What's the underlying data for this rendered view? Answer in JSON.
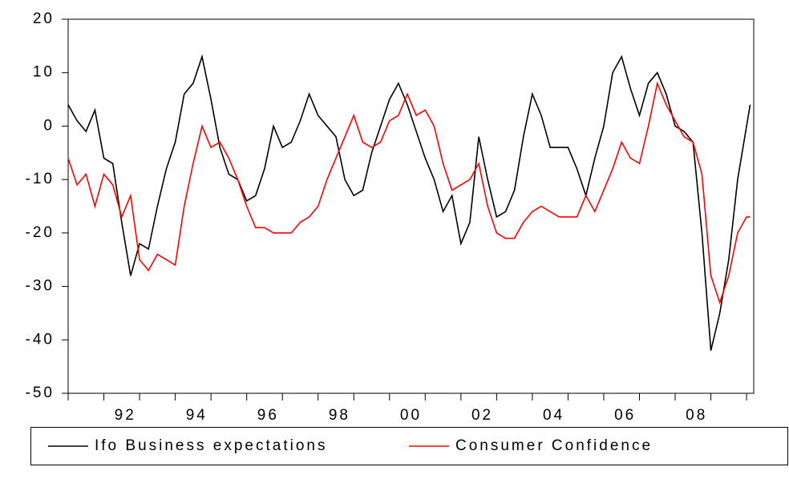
{
  "chart_data": {
    "type": "line",
    "x": [
      1991,
      1991.25,
      1991.5,
      1991.75,
      1992,
      1992.25,
      1992.5,
      1992.75,
      1993,
      1993.25,
      1993.5,
      1993.75,
      1994,
      1994.25,
      1994.5,
      1994.75,
      1995,
      1995.25,
      1995.5,
      1995.75,
      1996,
      1996.25,
      1996.5,
      1996.75,
      1997,
      1997.25,
      1997.5,
      1997.75,
      1998,
      1998.25,
      1998.5,
      1998.75,
      1999,
      1999.25,
      1999.5,
      1999.75,
      2000,
      2000.25,
      2000.5,
      2000.75,
      2001,
      2001.25,
      2001.5,
      2001.75,
      2002,
      2002.25,
      2002.5,
      2002.75,
      2003,
      2003.25,
      2003.5,
      2003.75,
      2004,
      2004.25,
      2004.5,
      2004.75,
      2005,
      2005.25,
      2005.5,
      2005.75,
      2006,
      2006.25,
      2006.5,
      2006.75,
      2007,
      2007.25,
      2007.5,
      2007.75,
      2008,
      2008.25,
      2008.5,
      2008.75,
      2009,
      2009.25,
      2009.5,
      2009.75,
      2010,
      2010.1
    ],
    "series": [
      {
        "name": "Ifo Business expectations",
        "color": "#000000",
        "values": [
          4,
          1,
          -1,
          3,
          -6,
          -7,
          -18,
          -28,
          -22,
          -23,
          -15,
          -8,
          -3,
          6,
          8,
          13,
          5,
          -4,
          -9,
          -10,
          -14,
          -13,
          -8,
          0,
          -4,
          -3,
          1,
          6,
          2,
          0,
          -2,
          -10,
          -13,
          -12,
          -5,
          0,
          5,
          8,
          4,
          -1,
          -6,
          -10,
          -16,
          -13,
          -22,
          -18,
          -2,
          -10,
          -17,
          -16,
          -12,
          -2,
          6,
          2,
          -4,
          -4,
          -4,
          -8,
          -13,
          -6,
          0,
          10,
          13,
          7,
          2,
          8,
          10,
          6,
          0,
          -1,
          -3,
          -20,
          -42,
          -35,
          -25,
          -10,
          0,
          4
        ]
      },
      {
        "name": "Consumer Confidence",
        "color": "#ff0000",
        "values": [
          -6,
          -11,
          -9,
          -15,
          -9,
          -11,
          -17,
          -13,
          -25,
          -27,
          -24,
          -25,
          -26,
          -15,
          -7,
          0,
          -4,
          -3,
          -6,
          -10,
          -15,
          -19,
          -19,
          -20,
          -20,
          -20,
          -18,
          -17,
          -15,
          -10,
          -6,
          -2,
          2,
          -3,
          -4,
          -3,
          1,
          2,
          6,
          2,
          3,
          0,
          -7,
          -12,
          -11,
          -10,
          -7,
          -15,
          -20,
          -21,
          -21,
          -18,
          -16,
          -15,
          -16,
          -17,
          -17,
          -17,
          -13,
          -16,
          -12,
          -8,
          -3,
          -6,
          -7,
          0,
          8,
          4,
          1,
          -2,
          -3,
          -9,
          -28,
          -33,
          -28,
          -20,
          -17,
          -17
        ]
      }
    ],
    "xlim": [
      1991,
      2010.2
    ],
    "xticks": [
      {
        "value": 1992,
        "label": "92"
      },
      {
        "value": 1994,
        "label": "94"
      },
      {
        "value": 1996,
        "label": "96"
      },
      {
        "value": 1998,
        "label": "98"
      },
      {
        "value": 2000,
        "label": "00"
      },
      {
        "value": 2002,
        "label": "02"
      },
      {
        "value": 2004,
        "label": "04"
      },
      {
        "value": 2006,
        "label": "06"
      },
      {
        "value": 2008,
        "label": "08"
      }
    ],
    "xminorticks": [
      1991,
      1993,
      1995,
      1997,
      1999,
      2001,
      2003,
      2005,
      2007,
      2009,
      2010
    ],
    "ylim": [
      -50,
      20
    ],
    "yticks": [
      -50,
      -40,
      -30,
      -20,
      -10,
      0,
      10,
      20
    ],
    "grid": false,
    "legend": "bottom"
  }
}
